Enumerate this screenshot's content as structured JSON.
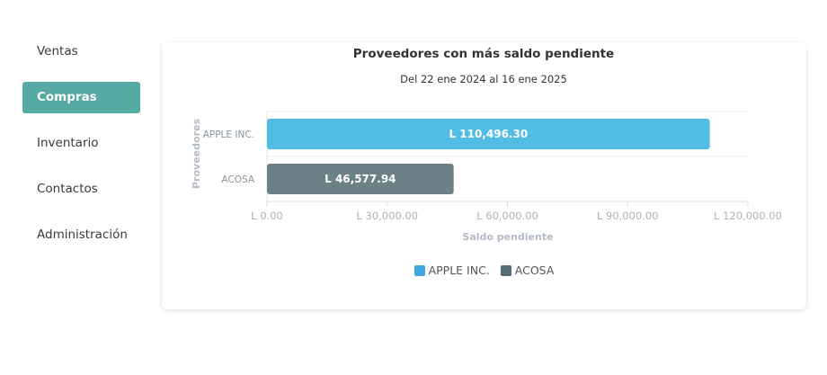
{
  "sidebar": {
    "items": [
      {
        "label": "Ventas",
        "active": false
      },
      {
        "label": "Compras",
        "active": true
      },
      {
        "label": "Inventario",
        "active": false
      },
      {
        "label": "Contactos",
        "active": false
      },
      {
        "label": "Administración",
        "active": false
      }
    ]
  },
  "colors": {
    "accent": "#57a9a3",
    "series_apple": "#52bde4",
    "series_acosa": "#6c8088"
  },
  "chart_data": {
    "type": "bar",
    "orientation": "horizontal",
    "title": "Proveedores con más saldo pendiente",
    "subtitle": "Del 22 ene 2024 al 16 ene 2025",
    "xlabel": "Saldo pendiente",
    "ylabel": "Proveedores",
    "categories": [
      "APPLE INC.",
      "ACOSA"
    ],
    "values": [
      110496.3,
      46577.94
    ],
    "value_labels": [
      "L 110,496.30",
      "L 46,577.94"
    ],
    "bar_colors": [
      "#52bde4",
      "#6c8088"
    ],
    "xlim": [
      0,
      120000
    ],
    "x_ticks": [
      0,
      30000,
      60000,
      90000,
      120000
    ],
    "x_tick_labels": [
      "L 0.00",
      "L 30,000.00",
      "L 60,000.00",
      "L 90,000.00",
      "L 120,000.00"
    ],
    "legend": [
      {
        "label": "APPLE INC.",
        "color": "#3fa9e0"
      },
      {
        "label": "ACOSA",
        "color": "#546c74"
      }
    ],
    "legend_position": "bottom",
    "grid": true
  }
}
